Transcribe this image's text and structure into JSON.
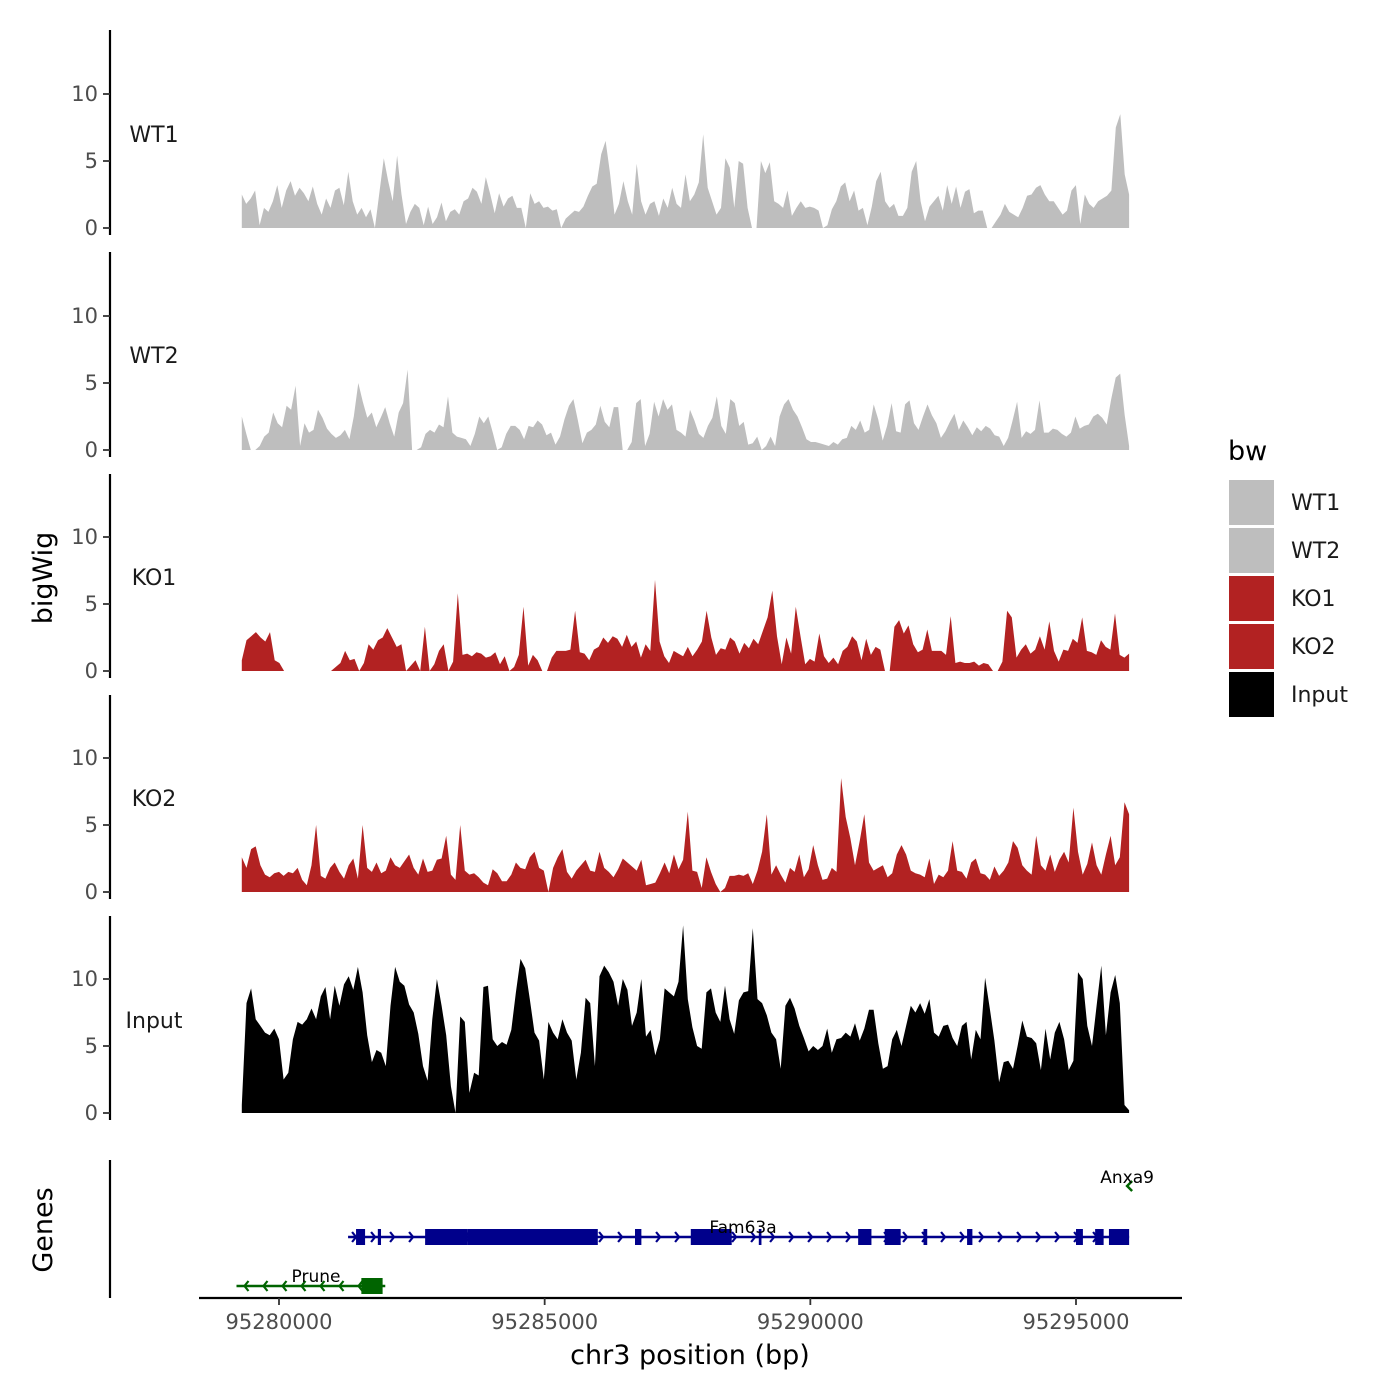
{
  "chart_data": {
    "type": "area",
    "chromosome": "chr3",
    "xlabel": "chr3 position (bp)",
    "ylabel": "bigWig",
    "genes_label": "Genes",
    "x_range": [
      95278400,
      95296900
    ],
    "signal_start": 95279300,
    "signal_end": 95296000,
    "y_range": [
      0,
      14.5
    ],
    "y_ticks": [
      "0",
      "5",
      "10"
    ],
    "y_tick_values": [
      0,
      5,
      10
    ],
    "x_ticks": [
      "95280000",
      "95285000",
      "95290000",
      "95295000"
    ],
    "x_tick_values": [
      95280000,
      95285000,
      95290000,
      95295000
    ],
    "legend": {
      "title": "bw",
      "items": [
        {
          "label": "WT1",
          "color": "#bebebe"
        },
        {
          "label": "WT2",
          "color": "#bebebe"
        },
        {
          "label": "KO1",
          "color": "#b22222"
        },
        {
          "label": "KO2",
          "color": "#b22222"
        },
        {
          "label": "Input",
          "color": "#000000"
        }
      ]
    },
    "tracks": [
      {
        "name": "WT1",
        "color": "#bebebe",
        "values": [
          2.5,
          1.8,
          2.2,
          2.8,
          0.2,
          1.5,
          1.2,
          2.0,
          3.2,
          1.5,
          2.8,
          3.5,
          2.4,
          3.0,
          2.6,
          2.0,
          3.1,
          1.8,
          1.0,
          2.2,
          1.5,
          2.8,
          3.0,
          1.7,
          4.2,
          2.0,
          1.0,
          1.5,
          0.8,
          1.4,
          0.0,
          2.6,
          5.2,
          3.5,
          2.0,
          5.4,
          2.5,
          0.3,
          1.2,
          1.8,
          1.5,
          0.2,
          1.6,
          0.3,
          0.8,
          1.9,
          0.5,
          1.2,
          1.4,
          1.0,
          2.0,
          2.2,
          3.0,
          2.7,
          1.8,
          3.8,
          2.5,
          1.1,
          2.6,
          1.6,
          2.2,
          2.4,
          1.5,
          1.5,
          0.0,
          2.6,
          1.8,
          2.0,
          1.5,
          1.6,
          1.3,
          1.4,
          0.0,
          0.7,
          1.0,
          1.3,
          1.2,
          1.6,
          2.4,
          3.1,
          3.3,
          5.5,
          6.5,
          4.1,
          1.0,
          1.8,
          3.5,
          2.0,
          1.0,
          4.8,
          2.0,
          1.0,
          1.8,
          2.0,
          0.9,
          2.2,
          1.5,
          3.0,
          1.8,
          1.5,
          4.0,
          2.0,
          2.5,
          3.4,
          7.0,
          3.0,
          2.0,
          1.0,
          1.5,
          5.2,
          4.5,
          1.5,
          5.0,
          4.8,
          1.5,
          0.0,
          0.0,
          5.0,
          4.1,
          4.9,
          2.0,
          1.8,
          1.5,
          2.8,
          0.9,
          1.5,
          2.0,
          1.5,
          1.6,
          1.5,
          1.3,
          0.0,
          0.2,
          1.4,
          2.0,
          3.1,
          3.4,
          2.0,
          2.8,
          1.3,
          1.5,
          0.2,
          1.6,
          3.5,
          4.2,
          2.0,
          1.5,
          1.8,
          0.9,
          0.9,
          1.5,
          4.2,
          5.0,
          2.0,
          0.5,
          1.6,
          2.0,
          2.4,
          1.3,
          3.2,
          1.8,
          3.1,
          1.5,
          2.7,
          2.9,
          1.1,
          1.3,
          1.3,
          0.0,
          0.0,
          0.5,
          1.0,
          1.8,
          1.2,
          1.0,
          0.8,
          1.5,
          2.4,
          2.5,
          3.0,
          3.2,
          2.5,
          2.0,
          2.0,
          1.5,
          1.0,
          1.3,
          2.8,
          3.2,
          0.3,
          2.5,
          1.8,
          1.5,
          2.0,
          2.2,
          2.4,
          2.8,
          7.5,
          8.5,
          4.0,
          2.5
        ]
      },
      {
        "name": "WT2",
        "color": "#bebebe",
        "values": [
          2.5,
          1.2,
          0.0,
          0.0,
          0.3,
          1.0,
          1.3,
          2.8,
          2.0,
          1.7,
          3.3,
          3.0,
          4.8,
          0.3,
          2.0,
          1.3,
          1.5,
          3.0,
          2.4,
          1.6,
          1.2,
          0.9,
          1.1,
          1.5,
          0.8,
          2.5,
          5.0,
          3.6,
          2.4,
          2.8,
          1.7,
          2.4,
          3.2,
          2.0,
          1.0,
          2.8,
          3.5,
          6.0,
          0.0,
          0.0,
          0.2,
          1.2,
          1.5,
          1.3,
          1.9,
          1.7,
          4.0,
          1.3,
          1.0,
          0.9,
          0.8,
          0.3,
          1.2,
          2.5,
          2.0,
          2.5,
          1.3,
          0.0,
          0.2,
          1.2,
          1.8,
          1.8,
          1.5,
          0.8,
          1.8,
          1.7,
          2.2,
          1.9,
          1.1,
          1.3,
          0.4,
          1.0,
          2.3,
          3.3,
          3.8,
          2.2,
          0.5,
          1.3,
          1.5,
          1.9,
          3.3,
          2.1,
          1.7,
          3.2,
          3.2,
          0.0,
          0.0,
          0.6,
          3.5,
          3.8,
          0.3,
          1.2,
          3.6,
          2.5,
          3.8,
          3.0,
          3.4,
          1.5,
          1.3,
          1.0,
          3.0,
          2.2,
          1.2,
          0.9,
          1.8,
          2.4,
          4.0,
          1.8,
          1.2,
          3.8,
          3.5,
          1.8,
          2.1,
          0.4,
          0.5,
          1.0,
          0.0,
          0.3,
          1.0,
          0.3,
          2.5,
          3.4,
          3.8,
          3.0,
          2.5,
          1.7,
          0.8,
          0.6,
          0.6,
          0.5,
          0.4,
          0.3,
          0.6,
          0.4,
          0.8,
          0.9,
          1.8,
          1.5,
          2.2,
          1.3,
          1.5,
          3.4,
          2.3,
          0.7,
          1.8,
          3.5,
          1.4,
          1.3,
          3.4,
          3.7,
          2.0,
          1.5,
          2.5,
          3.4,
          2.6,
          2.0,
          0.9,
          1.4,
          2.1,
          2.7,
          1.5,
          2.2,
          1.7,
          1.1,
          1.7,
          1.4,
          1.8,
          1.6,
          1.1,
          1.0,
          0.3,
          0.9,
          2.2,
          3.6,
          0.9,
          1.4,
          1.2,
          1.5,
          3.7,
          1.3,
          1.3,
          1.6,
          1.5,
          1.2,
          1.0,
          1.3,
          2.5,
          1.6,
          1.8,
          1.9,
          2.5,
          2.7,
          2.4,
          1.9,
          3.8,
          5.4,
          5.7,
          2.6,
          0.3
        ]
      },
      {
        "name": "KO1",
        "color": "#b22222",
        "values": [
          0.8,
          2.3,
          2.6,
          2.9,
          2.5,
          2.2,
          2.9,
          0.8,
          0.6,
          0.0,
          0.0,
          0.0,
          0.0,
          0.0,
          0.0,
          0.0,
          0.0,
          0.0,
          0.0,
          0.0,
          0.3,
          0.6,
          1.5,
          0.8,
          0.9,
          0.0,
          0.6,
          2.0,
          1.6,
          2.3,
          2.5,
          3.2,
          2.5,
          1.8,
          2.0,
          0.0,
          0.4,
          0.8,
          0.0,
          3.3,
          0.0,
          0.5,
          1.5,
          2.0,
          0.0,
          0.7,
          5.8,
          1.2,
          1.3,
          1.1,
          1.4,
          1.3,
          1.0,
          1.1,
          1.4,
          0.5,
          1.1,
          0.0,
          0.3,
          1.2,
          4.8,
          0.4,
          1.2,
          0.8,
          0.0,
          0.0,
          1.0,
          1.5,
          1.5,
          1.5,
          1.6,
          4.5,
          1.4,
          1.3,
          0.8,
          1.6,
          1.8,
          2.5,
          2.1,
          2.6,
          2.4,
          1.8,
          2.7,
          1.8,
          2.2,
          1.0,
          2.0,
          1.5,
          6.8,
          2.2,
          1.1,
          0.6,
          1.5,
          1.3,
          1.1,
          1.8,
          1.1,
          1.6,
          2.2,
          4.5,
          2.5,
          1.2,
          1.7,
          1.6,
          2.5,
          2.2,
          1.3,
          2.1,
          1.7,
          2.4,
          2.0,
          3.0,
          4.0,
          6.0,
          2.6,
          0.5,
          2.5,
          1.3,
          4.8,
          2.6,
          0.5,
          0.9,
          0.7,
          2.8,
          1.1,
          0.6,
          1.0,
          0.5,
          1.5,
          1.8,
          2.6,
          2.2,
          0.8,
          2.4,
          1.2,
          1.8,
          1.6,
          0.0,
          0.0,
          3.3,
          3.8,
          2.8,
          3.4,
          2.0,
          1.4,
          1.6,
          3.1,
          1.5,
          1.5,
          1.5,
          1.2,
          4.1,
          0.6,
          0.7,
          0.6,
          0.6,
          0.7,
          0.4,
          0.6,
          0.5,
          0.0,
          0.0,
          0.7,
          4.5,
          4.0,
          1.0,
          1.6,
          2.0,
          1.3,
          1.6,
          2.6,
          1.6,
          3.7,
          1.5,
          0.7,
          1.6,
          1.5,
          2.4,
          2.1,
          4.0,
          1.5,
          1.4,
          1.2,
          2.3,
          1.8,
          1.6,
          4.3,
          1.2,
          1.0,
          1.3
        ]
      },
      {
        "name": "KO2",
        "color": "#b22222",
        "values": [
          2.6,
          1.8,
          3.2,
          3.4,
          2.0,
          1.3,
          1.1,
          1.4,
          1.5,
          1.2,
          1.5,
          1.4,
          1.8,
          0.9,
          0.5,
          2.0,
          5.0,
          1.2,
          1.0,
          1.8,
          2.2,
          1.5,
          1.0,
          2.0,
          2.5,
          1.0,
          5.0,
          1.8,
          1.5,
          2.2,
          1.4,
          1.6,
          2.6,
          2.0,
          1.8,
          2.3,
          2.8,
          1.8,
          1.3,
          2.5,
          1.5,
          1.6,
          2.4,
          2.5,
          4.2,
          1.3,
          0.9,
          5.0,
          1.6,
          1.3,
          1.4,
          1.1,
          0.7,
          0.5,
          1.7,
          1.4,
          0.8,
          0.8,
          1.3,
          2.2,
          1.8,
          1.7,
          2.6,
          3.0,
          1.8,
          1.6,
          0.0,
          1.8,
          2.6,
          3.2,
          1.5,
          1.0,
          1.6,
          2.0,
          2.4,
          1.6,
          1.5,
          3.0,
          1.8,
          1.5,
          1.1,
          1.7,
          2.5,
          2.2,
          1.9,
          1.6,
          2.4,
          0.5,
          0.6,
          0.7,
          1.4,
          2.2,
          1.4,
          2.8,
          1.7,
          2.4,
          6.0,
          1.6,
          1.5,
          0.3,
          2.6,
          1.5,
          0.6,
          0.0,
          0.3,
          1.2,
          1.2,
          1.3,
          1.2,
          1.4,
          0.6,
          1.6,
          3.0,
          5.8,
          1.3,
          2.0,
          1.3,
          0.7,
          1.8,
          1.5,
          2.8,
          1.1,
          1.7,
          3.5,
          2.0,
          0.9,
          1.0,
          1.8,
          1.5,
          8.5,
          5.6,
          4.0,
          2.0,
          3.8,
          5.8,
          2.2,
          1.6,
          1.8,
          2.0,
          1.1,
          1.4,
          2.8,
          3.5,
          2.8,
          1.6,
          1.4,
          1.3,
          1.1,
          2.5,
          0.6,
          1.3,
          1.1,
          1.6,
          3.8,
          1.6,
          1.5,
          1.0,
          2.2,
          2.5,
          1.4,
          1.3,
          0.9,
          1.9,
          1.2,
          1.6,
          2.2,
          3.8,
          3.3,
          2.0,
          1.6,
          1.3,
          4.2,
          2.0,
          1.6,
          2.8,
          1.5,
          2.4,
          3.0,
          2.2,
          6.3,
          3.0,
          1.3,
          2.1,
          3.7,
          2.0,
          1.3,
          2.8,
          4.2,
          2.0,
          2.6,
          6.7,
          5.8
        ]
      },
      {
        "name": "Input",
        "color": "#000000",
        "values": [
          0.6,
          8.2,
          9.3,
          7.0,
          6.5,
          6.0,
          5.8,
          6.3,
          5.5,
          2.5,
          3.0,
          5.5,
          6.8,
          6.6,
          7.0,
          7.8,
          7.0,
          8.7,
          9.4,
          7.0,
          9.5,
          8.0,
          9.6,
          10.2,
          9.2,
          10.9,
          9.0,
          5.8,
          3.8,
          4.7,
          4.5,
          3.5,
          8.0,
          10.9,
          9.8,
          9.5,
          8.1,
          7.5,
          5.9,
          3.5,
          2.4,
          7.0,
          10.0,
          8.0,
          5.8,
          2.0,
          0.0,
          7.2,
          6.8,
          1.5,
          3.0,
          2.8,
          9.4,
          9.5,
          5.5,
          5.0,
          5.3,
          5.1,
          6.2,
          9.0,
          11.5,
          10.8,
          8.5,
          6.0,
          5.4,
          2.5,
          6.8,
          6.0,
          5.5,
          7.0,
          6.0,
          5.4,
          2.5,
          4.5,
          8.6,
          8.2,
          3.5,
          10.2,
          11.0,
          10.5,
          9.8,
          8.0,
          10.0,
          9.2,
          6.5,
          7.5,
          10.0,
          5.7,
          6.2,
          4.3,
          5.5,
          9.3,
          9.0,
          8.7,
          9.8,
          14.0,
          8.5,
          6.4,
          5.0,
          4.8,
          9.0,
          9.3,
          7.5,
          6.8,
          9.5,
          7.0,
          5.9,
          8.4,
          9.0,
          9.1,
          13.8,
          8.5,
          8.2,
          7.3,
          6.0,
          5.5,
          3.3,
          8.0,
          8.6,
          7.8,
          6.5,
          5.6,
          4.6,
          5.0,
          4.7,
          5.0,
          6.3,
          4.5,
          5.5,
          5.6,
          6.0,
          5.7,
          6.7,
          5.4,
          6.3,
          7.7,
          7.7,
          5.2,
          3.3,
          3.5,
          5.5,
          6.2,
          5.0,
          6.5,
          8.0,
          7.5,
          8.2,
          7.4,
          8.5,
          6.0,
          5.7,
          6.5,
          6.6,
          5.6,
          5.0,
          6.5,
          6.8,
          4.0,
          6.2,
          5.5,
          10.1,
          7.8,
          5.4,
          2.3,
          3.8,
          3.9,
          3.3,
          5.0,
          6.9,
          5.7,
          5.6,
          5.2,
          3.2,
          6.3,
          4.0,
          6.0,
          6.8,
          5.5,
          3.2,
          3.9,
          10.5,
          10.0,
          6.5,
          5.0,
          8.0,
          11.0,
          5.8,
          9.0,
          10.3,
          8.2,
          0.6,
          0.2
        ]
      }
    ],
    "genes": [
      {
        "name": "Anxa9",
        "row": 0,
        "strand": "-",
        "color": "#006400",
        "start": 95296000,
        "end": 95296000,
        "exons": []
      },
      {
        "name": "Fam63a",
        "row": 1,
        "strand": "+",
        "color": "#00008b",
        "start": 95281300,
        "end": 95296000,
        "exons": [
          [
            95281450,
            95281620
          ],
          [
            95281860,
            95281920
          ],
          [
            95282750,
            95283550
          ],
          [
            95283550,
            95286000
          ],
          [
            95286700,
            95286820
          ],
          [
            95287750,
            95288520
          ],
          [
            95289030,
            95289080
          ],
          [
            95290900,
            95291150
          ],
          [
            95291400,
            95291700
          ],
          [
            95292130,
            95292200
          ],
          [
            95292950,
            95293050
          ],
          [
            95295000,
            95295130
          ],
          [
            95295360,
            95295520
          ],
          [
            95295620,
            95296000
          ]
        ]
      },
      {
        "name": "Prune",
        "row": 2,
        "strand": "-",
        "color": "#006400",
        "start": 95279200,
        "end": 95282000,
        "exons": [
          [
            95281550,
            95281950
          ]
        ]
      }
    ]
  }
}
